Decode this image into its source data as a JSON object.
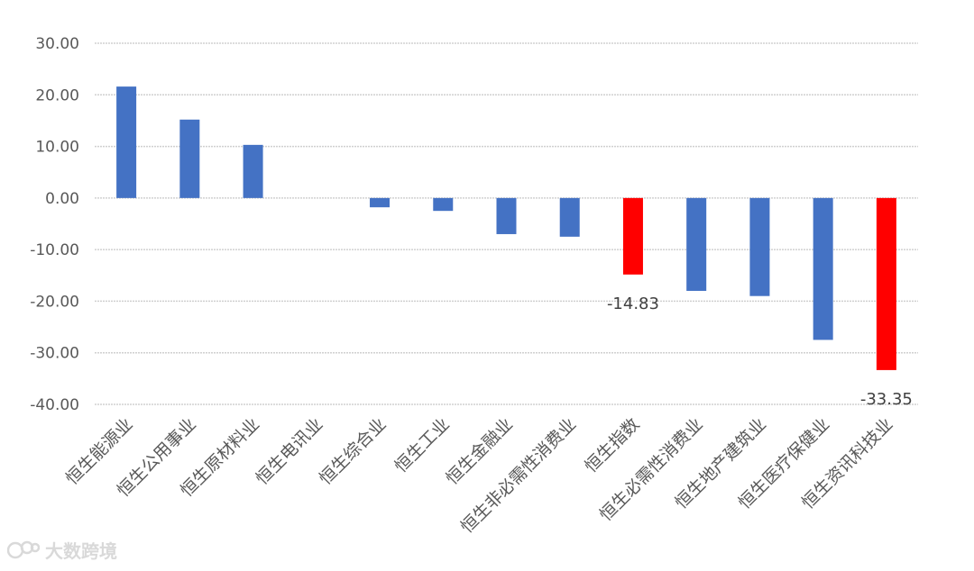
{
  "chart_data": {
    "type": "bar",
    "title": "",
    "xlabel": "",
    "ylabel": "",
    "ylim": [
      -40,
      30
    ],
    "yticks": [
      "30.00",
      "20.00",
      "10.00",
      "0.00",
      "-10.00",
      "-20.00",
      "-30.00",
      "-40.00"
    ],
    "grid": true,
    "categories": [
      "恒生能源业",
      "恒生公用事业",
      "恒生原材料业",
      "恒生电讯业",
      "恒生综合业",
      "恒生工业",
      "恒生金融业",
      "恒生非必需性消费业",
      "恒生指数",
      "恒生必需性消费业",
      "恒生地产建筑业",
      "恒生医疗保健业",
      "恒生资讯科技业"
    ],
    "values": [
      21.6,
      15.2,
      10.3,
      0,
      -1.8,
      -2.5,
      -7.0,
      -7.5,
      -14.83,
      -18.0,
      -19.0,
      -27.5,
      -33.35
    ],
    "highlight": [
      false,
      false,
      false,
      false,
      false,
      false,
      false,
      false,
      true,
      false,
      false,
      false,
      true
    ],
    "data_labels": [
      "",
      "",
      "",
      "",
      "",
      "",
      "",
      "",
      "-14.83",
      "",
      "",
      "",
      "-33.35"
    ],
    "colors": {
      "bar": "#4472C4",
      "highlight": "#FF0000",
      "grid": "#D0D0D0",
      "text": "#595959"
    }
  },
  "watermark": {
    "text": "大数跨境",
    "icon": "speech-bubble-logo-icon"
  }
}
